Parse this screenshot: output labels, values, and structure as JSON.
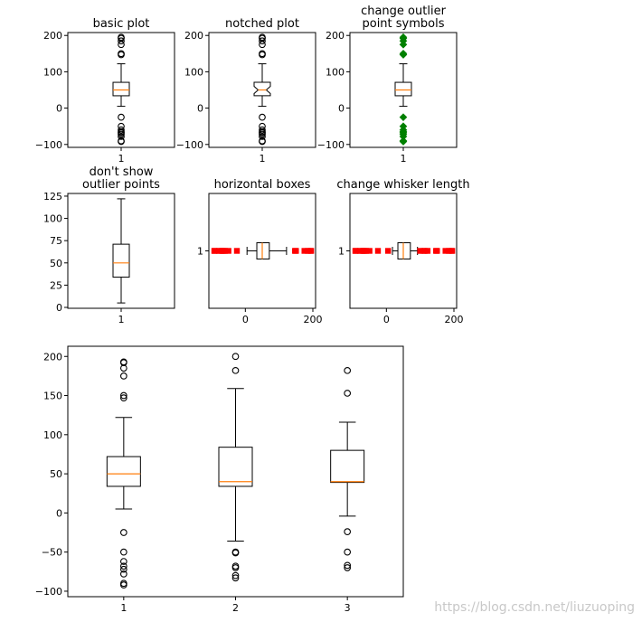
{
  "watermark": "https://blog.csdn.net/liuzuoping",
  "colors": {
    "median": "#ff7f0e",
    "green_marker": "#008000",
    "red_marker": "#ff0000",
    "axis": "#000000",
    "watermark": "#c8c8c8"
  },
  "chart_data": [
    {
      "id": "basic",
      "type": "boxplot",
      "orientation": "vertical",
      "title": [
        "basic plot"
      ],
      "yticks": [
        -100,
        0,
        100,
        200
      ],
      "ylim": [
        -108,
        208
      ],
      "xticks": [
        "1"
      ],
      "notch": false,
      "flier_marker": "circle",
      "boxes": [
        {
          "label": "1",
          "whislo": 5,
          "q1": 34,
          "med": 50,
          "q3": 71,
          "whishi": 122,
          "fliers": [
            195,
            192,
            185,
            175,
            150,
            147,
            -25,
            -50,
            -60,
            -65,
            -68,
            -72,
            -78,
            -90,
            -92
          ]
        }
      ]
    },
    {
      "id": "notched",
      "type": "boxplot",
      "orientation": "vertical",
      "title": [
        "notched plot"
      ],
      "yticks": [
        -100,
        0,
        100,
        200
      ],
      "ylim": [
        -108,
        208
      ],
      "xticks": [
        "1"
      ],
      "notch": true,
      "notch_range": [
        40,
        60
      ],
      "flier_marker": "circle",
      "boxes": [
        {
          "label": "1",
          "whislo": 5,
          "q1": 34,
          "med": 50,
          "q3": 71,
          "whishi": 122,
          "fliers": [
            195,
            192,
            185,
            175,
            150,
            147,
            -25,
            -50,
            -60,
            -65,
            -68,
            -72,
            -78,
            -90,
            -92
          ]
        }
      ]
    },
    {
      "id": "outlier-symbols",
      "type": "boxplot",
      "orientation": "vertical",
      "title": [
        "change outlier",
        "point symbols"
      ],
      "yticks": [
        -100,
        0,
        100,
        200
      ],
      "ylim": [
        -108,
        208
      ],
      "xticks": [
        "1"
      ],
      "notch": false,
      "flier_marker": "green-diamond",
      "boxes": [
        {
          "label": "1",
          "whislo": 5,
          "q1": 34,
          "med": 50,
          "q3": 71,
          "whishi": 122,
          "fliers": [
            195,
            192,
            185,
            175,
            150,
            147,
            -25,
            -50,
            -60,
            -65,
            -68,
            -72,
            -78,
            -90,
            -92
          ]
        }
      ]
    },
    {
      "id": "no-outliers",
      "type": "boxplot",
      "orientation": "vertical",
      "title": [
        "don't show",
        "outlier points"
      ],
      "yticks": [
        0,
        25,
        50,
        75,
        100,
        125
      ],
      "ylim": [
        -1,
        128
      ],
      "xticks": [
        "1"
      ],
      "notch": false,
      "flier_marker": "none",
      "boxes": [
        {
          "label": "1",
          "whislo": 5,
          "q1": 34,
          "med": 50,
          "q3": 71,
          "whishi": 122,
          "fliers": []
        }
      ]
    },
    {
      "id": "horizontal",
      "type": "boxplot",
      "orientation": "horizontal",
      "title": [
        "horizontal boxes"
      ],
      "xticks": [
        0,
        200
      ],
      "xlim": [
        -108,
        208
      ],
      "yticks": [
        "1"
      ],
      "notch": false,
      "flier_marker": "red-square",
      "boxes": [
        {
          "label": "1",
          "whislo": 5,
          "q1": 34,
          "med": 50,
          "q3": 71,
          "whishi": 122,
          "fliers": [
            195,
            192,
            185,
            175,
            150,
            147,
            -25,
            -50,
            -60,
            -65,
            -68,
            -72,
            -78,
            -90,
            -92
          ]
        }
      ]
    },
    {
      "id": "whisker-length",
      "type": "boxplot",
      "orientation": "horizontal",
      "title": [
        "change whisker length"
      ],
      "xticks": [
        0,
        200
      ],
      "xlim": [
        -108,
        208
      ],
      "yticks": [
        "1"
      ],
      "notch": false,
      "flier_marker": "red-square",
      "boxes": [
        {
          "label": "1",
          "whislo": 18,
          "q1": 34,
          "med": 50,
          "q3": 71,
          "whishi": 92,
          "fliers": [
            195,
            192,
            185,
            175,
            150,
            147,
            122,
            115,
            110,
            100,
            5,
            -25,
            -50,
            -60,
            -65,
            -68,
            -72,
            -78,
            -90,
            -92
          ]
        }
      ]
    },
    {
      "id": "multiple",
      "type": "boxplot",
      "orientation": "vertical",
      "title": [],
      "yticks": [
        -100,
        -50,
        0,
        50,
        100,
        150,
        200
      ],
      "ylim": [
        -107,
        213
      ],
      "xticks": [
        "1",
        "2",
        "3"
      ],
      "notch": false,
      "flier_marker": "circle",
      "boxes": [
        {
          "label": "1",
          "whislo": 5,
          "q1": 34,
          "med": 50,
          "q3": 72,
          "whishi": 122,
          "fliers": [
            193,
            192,
            185,
            175,
            150,
            147,
            -25,
            -50,
            -62,
            -68,
            -72,
            -78,
            -90,
            -92
          ]
        },
        {
          "label": "2",
          "whislo": -36,
          "q1": 34,
          "med": 40,
          "q3": 84,
          "whishi": 159,
          "fliers": [
            200,
            182,
            -50,
            -51,
            -68,
            -70,
            -80,
            -83
          ]
        },
        {
          "label": "3",
          "whislo": -4,
          "q1": 39,
          "med": 40,
          "q3": 80,
          "whishi": 116,
          "fliers": [
            182,
            153,
            -24,
            -50,
            -67,
            -70
          ]
        }
      ]
    }
  ]
}
